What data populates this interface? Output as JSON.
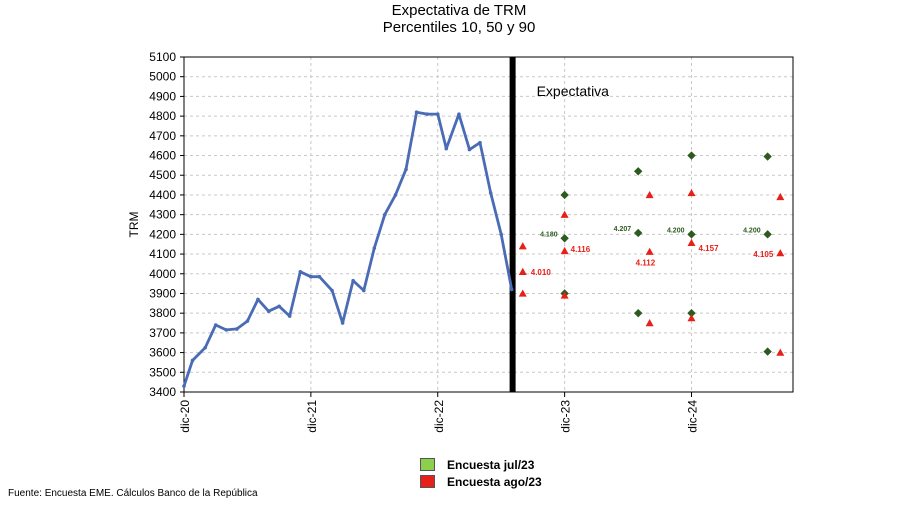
{
  "chart_data": {
    "type": "line",
    "title": "Expectativa de TRM",
    "subtitle": "Percentiles 10, 50 y 90",
    "ylabel": "TRM",
    "xlabel": "",
    "ylim": [
      3400,
      5100
    ],
    "yticks": [
      3400,
      3500,
      3600,
      3700,
      3800,
      3900,
      4000,
      4100,
      4200,
      4300,
      4400,
      4500,
      4600,
      4700,
      4800,
      4900,
      5000,
      5100
    ],
    "xlim": [
      0,
      48
    ],
    "xticks": [
      {
        "label": "dic-20",
        "x": 0
      },
      {
        "label": "dic-21",
        "x": 10
      },
      {
        "label": "dic-22",
        "x": 20
      },
      {
        "label": "dic-23",
        "x": 30
      },
      {
        "label": "dic-24",
        "x": 40
      }
    ],
    "annotation": "Expectativa",
    "divider_x": 25.9,
    "series": [
      {
        "name": "TRM",
        "color": "#4a6bb5",
        "x": [
          0,
          0.67,
          1.67,
          2.5,
          3.33,
          4.17,
          5,
          5.83,
          6.67,
          7.5,
          8.33,
          9.17,
          10,
          10.67,
          11.67,
          12.5,
          13.33,
          14.17,
          15,
          15.83,
          16.67,
          17.5,
          18.33,
          19.17,
          20,
          20.67,
          21.67,
          22.5,
          23.33,
          24.17,
          25,
          25.83
        ],
        "values": [
          3430,
          3560,
          3625,
          3740,
          3715,
          3720,
          3760,
          3870,
          3810,
          3835,
          3785,
          4010,
          3985,
          3985,
          3915,
          3750,
          3965,
          3915,
          4130,
          4300,
          4400,
          4530,
          4820,
          4810,
          4810,
          4635,
          4810,
          4630,
          4665,
          4410,
          4200,
          3920
        ]
      },
      {
        "name": "Encuesta jul/23",
        "color": "#2d5a1e",
        "marker": "diamond",
        "points": [
          {
            "x": 30,
            "p10": 3900,
            "p50": 4180,
            "p90": 4400,
            "label": "4.180"
          },
          {
            "x": 35.8,
            "p10": 3800,
            "p50": 4207,
            "p90": 4520,
            "label": "4.207"
          },
          {
            "x": 40,
            "p10": 3800,
            "p50": 4200,
            "p90": 4600,
            "label": "4.200"
          },
          {
            "x": 46,
            "p10": 3605,
            "p50": 4200,
            "p90": 4595,
            "label": "4.200"
          }
        ]
      },
      {
        "name": "Encuesta ago/23",
        "color": "#e8201a",
        "marker": "triangle",
        "points": [
          {
            "x": 26.7,
            "p10": 3900,
            "p50": 4010,
            "p90": 4140,
            "label": "4.010"
          },
          {
            "x": 30,
            "p10": 3890,
            "p50": 4116,
            "p90": 4300,
            "label": "4.116"
          },
          {
            "x": 36.7,
            "p10": 3750,
            "p50": 4112,
            "p90": 4400,
            "label": "4.112"
          },
          {
            "x": 40,
            "p10": 3775,
            "p50": 4157,
            "p90": 4410,
            "label": "4.157"
          },
          {
            "x": 47,
            "p10": 3600,
            "p50": 4105,
            "p90": 4390,
            "label": "4.105"
          }
        ]
      }
    ],
    "grid": true
  },
  "legend": {
    "items": [
      {
        "label": "Encuesta jul/23",
        "color": "#8ccf4d"
      },
      {
        "label": "Encuesta ago/23",
        "color": "#e8201a"
      }
    ]
  },
  "source": "Fuente: Encuesta EME. Cálculos Banco de la República"
}
